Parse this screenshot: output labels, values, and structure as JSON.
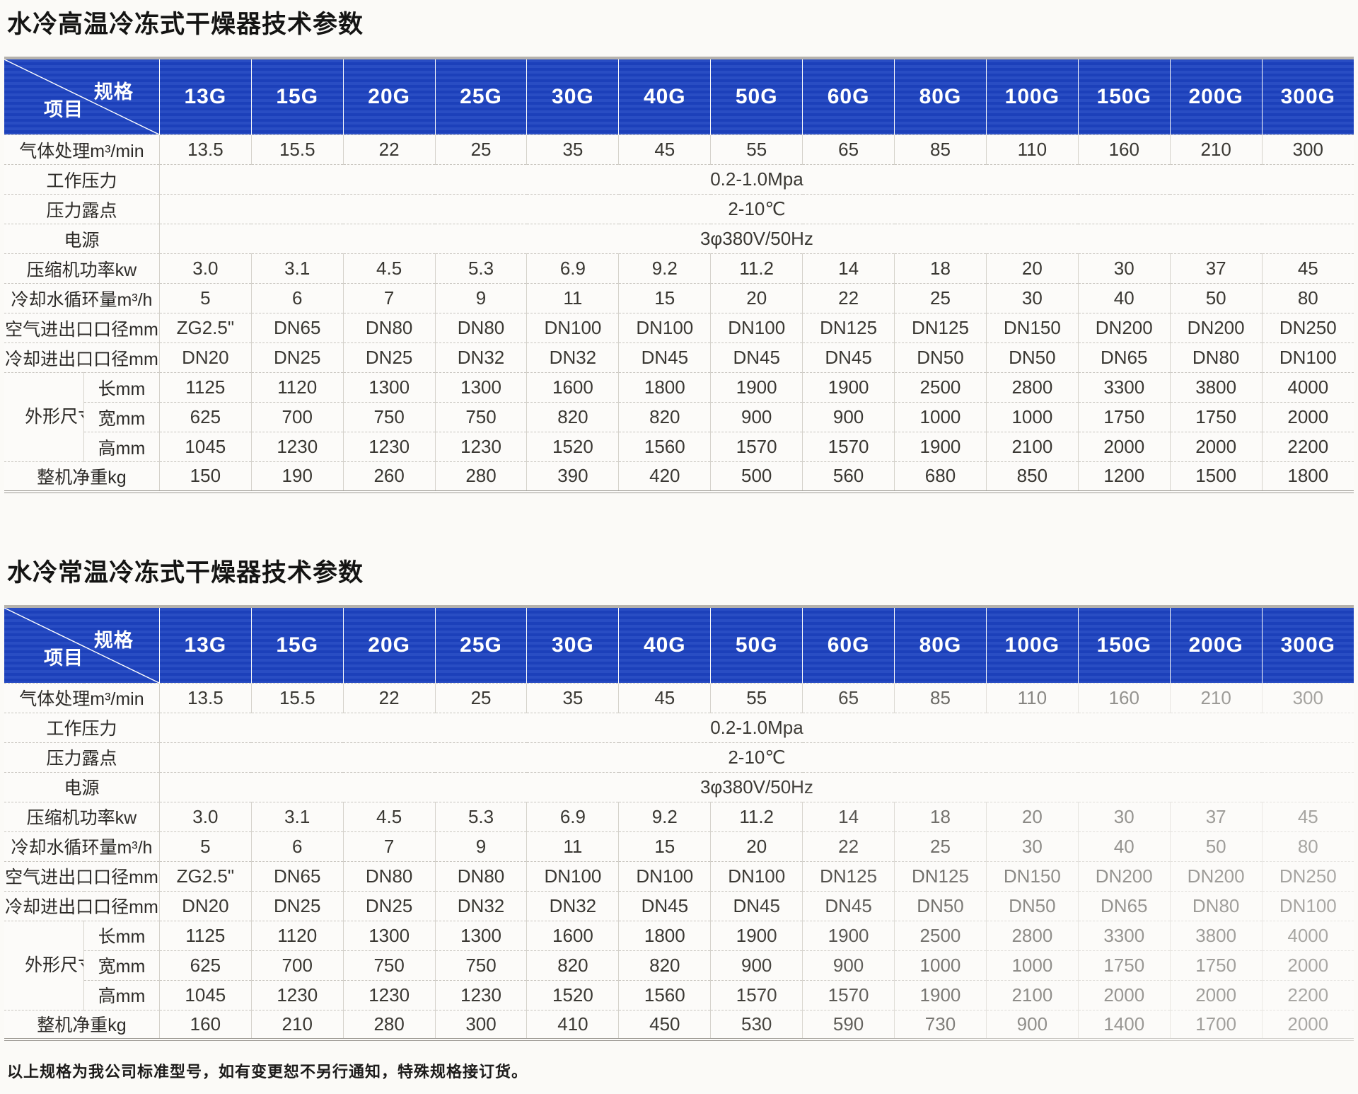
{
  "footer": "以上规格为我公司标准型号，如有变更恕不另行通知，特殊规格接订货。",
  "accent_color": "#1d43c0",
  "tables": [
    {
      "title": "水冷高温冷冻式干燥器技术参数",
      "corner": {
        "spec": "规格",
        "item": "项目"
      },
      "models": [
        "13G",
        "15G",
        "20G",
        "25G",
        "30G",
        "40G",
        "50G",
        "60G",
        "80G",
        "100G",
        "150G",
        "200G",
        "300G"
      ],
      "rows": [
        {
          "type": "values",
          "label": "气体处理m³/min",
          "values": [
            "13.5",
            "15.5",
            "22",
            "25",
            "35",
            "45",
            "55",
            "65",
            "85",
            "110",
            "160",
            "210",
            "300"
          ]
        },
        {
          "type": "span",
          "label": "工作压力",
          "value": "0.2-1.0Mpa"
        },
        {
          "type": "span",
          "label": "压力露点",
          "value": "2-10℃"
        },
        {
          "type": "span",
          "label": "电源",
          "value": "3φ380V/50Hz"
        },
        {
          "type": "values",
          "label": "压缩机功率kw",
          "values": [
            "3.0",
            "3.1",
            "4.5",
            "5.3",
            "6.9",
            "9.2",
            "11.2",
            "14",
            "18",
            "20",
            "30",
            "37",
            "45"
          ]
        },
        {
          "type": "values",
          "label": "冷却水循环量m³/h",
          "values": [
            "5",
            "6",
            "7",
            "9",
            "11",
            "15",
            "20",
            "22",
            "25",
            "30",
            "40",
            "50",
            "80"
          ]
        },
        {
          "type": "values",
          "label": "空气进出口口径mm",
          "values": [
            "ZG2.5\"",
            "DN65",
            "DN80",
            "DN80",
            "DN100",
            "DN100",
            "DN100",
            "DN125",
            "DN125",
            "DN150",
            "DN200",
            "DN200",
            "DN250"
          ]
        },
        {
          "type": "values",
          "label": "冷却进出口口径mm",
          "values": [
            "DN20",
            "DN25",
            "DN25",
            "DN32",
            "DN32",
            "DN45",
            "DN45",
            "DN45",
            "DN50",
            "DN50",
            "DN65",
            "DN80",
            "DN100"
          ]
        },
        {
          "type": "group",
          "label": "外形尺寸",
          "sub": [
            {
              "label": "长mm",
              "values": [
                "1125",
                "1120",
                "1300",
                "1300",
                "1600",
                "1800",
                "1900",
                "1900",
                "2500",
                "2800",
                "3300",
                "3800",
                "4000"
              ]
            },
            {
              "label": "宽mm",
              "values": [
                "625",
                "700",
                "750",
                "750",
                "820",
                "820",
                "900",
                "900",
                "1000",
                "1000",
                "1750",
                "1750",
                "2000"
              ]
            },
            {
              "label": "高mm",
              "values": [
                "1045",
                "1230",
                "1230",
                "1230",
                "1520",
                "1560",
                "1570",
                "1570",
                "1900",
                "2100",
                "2000",
                "2000",
                "2200"
              ]
            }
          ]
        },
        {
          "type": "values",
          "label": "整机净重kg",
          "values": [
            "150",
            "190",
            "260",
            "280",
            "390",
            "420",
            "500",
            "560",
            "680",
            "850",
            "1200",
            "1500",
            "1800"
          ]
        }
      ]
    },
    {
      "title": "水冷常温冷冻式干燥器技术参数",
      "corner": {
        "spec": "规格",
        "item": "项目"
      },
      "models": [
        "13G",
        "15G",
        "20G",
        "25G",
        "30G",
        "40G",
        "50G",
        "60G",
        "80G",
        "100G",
        "150G",
        "200G",
        "300G"
      ],
      "rows": [
        {
          "type": "values",
          "label": "气体处理m³/min",
          "values": [
            "13.5",
            "15.5",
            "22",
            "25",
            "35",
            "45",
            "55",
            "65",
            "85",
            "110",
            "160",
            "210",
            "300"
          ]
        },
        {
          "type": "span",
          "label": "工作压力",
          "value": "0.2-1.0Mpa"
        },
        {
          "type": "span",
          "label": "压力露点",
          "value": "2-10℃"
        },
        {
          "type": "span",
          "label": "电源",
          "value": "3φ380V/50Hz"
        },
        {
          "type": "values",
          "label": "压缩机功率kw",
          "values": [
            "3.0",
            "3.1",
            "4.5",
            "5.3",
            "6.9",
            "9.2",
            "11.2",
            "14",
            "18",
            "20",
            "30",
            "37",
            "45"
          ]
        },
        {
          "type": "values",
          "label": "冷却水循环量m³/h",
          "values": [
            "5",
            "6",
            "7",
            "9",
            "11",
            "15",
            "20",
            "22",
            "25",
            "30",
            "40",
            "50",
            "80"
          ]
        },
        {
          "type": "values",
          "label": "空气进出口口径mm",
          "values": [
            "ZG2.5\"",
            "DN65",
            "DN80",
            "DN80",
            "DN100",
            "DN100",
            "DN100",
            "DN125",
            "DN125",
            "DN150",
            "DN200",
            "DN200",
            "DN250"
          ]
        },
        {
          "type": "values",
          "label": "冷却进出口口径mm",
          "values": [
            "DN20",
            "DN25",
            "DN25",
            "DN32",
            "DN32",
            "DN45",
            "DN45",
            "DN45",
            "DN50",
            "DN50",
            "DN65",
            "DN80",
            "DN100"
          ]
        },
        {
          "type": "group",
          "label": "外形尺寸",
          "sub": [
            {
              "label": "长mm",
              "values": [
                "1125",
                "1120",
                "1300",
                "1300",
                "1600",
                "1800",
                "1900",
                "1900",
                "2500",
                "2800",
                "3300",
                "3800",
                "4000"
              ]
            },
            {
              "label": "宽mm",
              "values": [
                "625",
                "700",
                "750",
                "750",
                "820",
                "820",
                "900",
                "900",
                "1000",
                "1000",
                "1750",
                "1750",
                "2000"
              ]
            },
            {
              "label": "高mm",
              "values": [
                "1045",
                "1230",
                "1230",
                "1230",
                "1520",
                "1560",
                "1570",
                "1570",
                "1900",
                "2100",
                "2000",
                "2000",
                "2200"
              ]
            }
          ]
        },
        {
          "type": "values",
          "label": "整机净重kg",
          "values": [
            "160",
            "210",
            "280",
            "300",
            "410",
            "450",
            "530",
            "590",
            "730",
            "900",
            "1400",
            "1700",
            "2000"
          ]
        }
      ]
    }
  ]
}
